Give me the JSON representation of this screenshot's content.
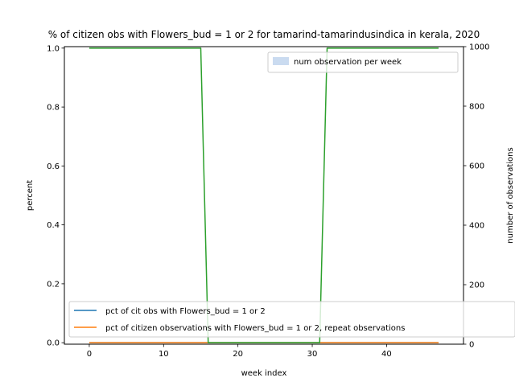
{
  "chart_data": {
    "type": "line",
    "title": "% of citizen obs with Flowers_bud = 1 or 2 for tamarind-tamarindusindica in kerala, 2020",
    "xlabel": "week index",
    "ylabel_left": "percent",
    "ylabel_right": "number of observations",
    "xlim": [
      -3.35,
      50.35
    ],
    "ylim_left": [
      -0.005,
      1.005
    ],
    "ylim_right": [
      0,
      1000
    ],
    "x_ticks": [
      0,
      10,
      20,
      30,
      40
    ],
    "y_left_ticks": [
      "0.0",
      "0.2",
      "0.4",
      "0.6",
      "0.8",
      "1.0"
    ],
    "y_right_ticks": [
      "0",
      "200",
      "400",
      "600",
      "800",
      "1000"
    ],
    "grid": false,
    "series": [
      {
        "name": "pct of cit obs with Flowers_bud = 1 or 2",
        "color": "#1f77b4",
        "axis": "left",
        "x": [
          0,
          1,
          2,
          3,
          4,
          5,
          6,
          7,
          8,
          9,
          10,
          11,
          12,
          13,
          14,
          15,
          16,
          17,
          18,
          19,
          20,
          21,
          22,
          23,
          24,
          25,
          26,
          27,
          28,
          29,
          30,
          31,
          32,
          33,
          34,
          35,
          36,
          37,
          38,
          39,
          40,
          41,
          42,
          43,
          44,
          45,
          46,
          47
        ],
        "values": [
          0,
          0,
          0,
          0,
          0,
          0,
          0,
          0,
          0,
          0,
          0,
          0,
          0,
          0,
          0,
          0,
          0,
          0,
          0,
          0,
          0,
          0,
          0,
          0,
          0,
          0,
          0,
          0,
          0,
          0,
          0,
          0,
          0,
          0,
          0,
          0,
          0,
          0,
          0,
          0,
          0,
          0,
          0,
          0,
          0,
          0,
          0,
          0
        ]
      },
      {
        "name": "pct of citizen observations with Flowers_bud = 1 or 2, repeat observations",
        "color": "#ff7f0e",
        "axis": "left",
        "x": [
          0,
          1,
          2,
          3,
          4,
          5,
          6,
          7,
          8,
          9,
          10,
          11,
          12,
          13,
          14,
          15,
          16,
          17,
          18,
          19,
          20,
          21,
          22,
          23,
          24,
          25,
          26,
          27,
          28,
          29,
          30,
          31,
          32,
          33,
          34,
          35,
          36,
          37,
          38,
          39,
          40,
          41,
          42,
          43,
          44,
          45,
          46,
          47
        ],
        "values": [
          0,
          0,
          0,
          0,
          0,
          0,
          0,
          0,
          0,
          0,
          0,
          0,
          0,
          0,
          0,
          0,
          0,
          0,
          0,
          0,
          0,
          0,
          0,
          0,
          0,
          0,
          0,
          0,
          0,
          0,
          0,
          0,
          0,
          0,
          0,
          0,
          0,
          0,
          0,
          0,
          0,
          0,
          0,
          0,
          0,
          0,
          0,
          0
        ]
      },
      {
        "color": "#2ca02c",
        "axis": "left",
        "x": [
          0,
          1,
          2,
          3,
          4,
          5,
          6,
          7,
          8,
          9,
          10,
          11,
          12,
          13,
          14,
          15,
          16,
          17,
          18,
          19,
          20,
          21,
          22,
          23,
          24,
          25,
          26,
          27,
          28,
          29,
          30,
          31,
          32,
          33,
          34,
          35,
          36,
          37,
          38,
          39,
          40,
          41,
          42,
          43,
          44,
          45,
          46,
          47
        ],
        "values": [
          1,
          1,
          1,
          1,
          1,
          1,
          1,
          1,
          1,
          1,
          1,
          1,
          1,
          1,
          1,
          1,
          0,
          0,
          0,
          0,
          0,
          0,
          0,
          0,
          0,
          0,
          0,
          0,
          0,
          0,
          0,
          0,
          1,
          1,
          1,
          1,
          1,
          1,
          1,
          1,
          1,
          1,
          1,
          1,
          1,
          1,
          1,
          1
        ]
      }
    ],
    "bars": {
      "name": "num observation per week",
      "color": "#aec7e8",
      "axis": "right",
      "values": []
    },
    "legend_upper": "upper-right",
    "legend_lower": "lower-left"
  }
}
